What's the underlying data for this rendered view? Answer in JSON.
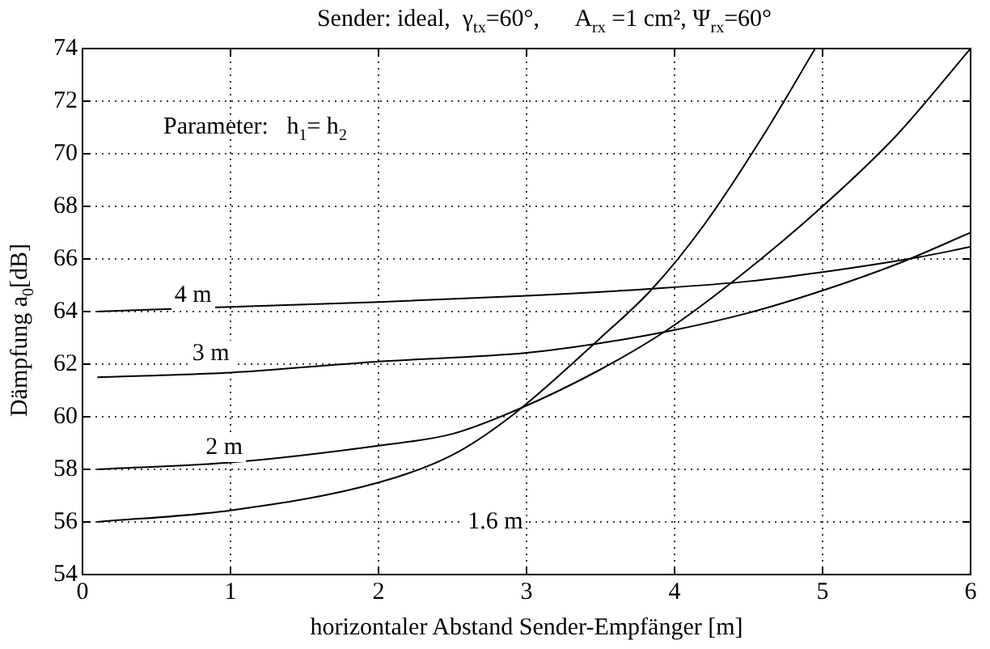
{
  "chart_data": {
    "type": "line",
    "title": "Sender: ideal,  γ$_{tx}$=60°,      A$_{rx}$ =1 cm², Ψ$_{rx}$=60°",
    "xlabel": "horizontaler Abstand Sender-Empfänger [m]",
    "ylabel": "Dämpfung a$_{0}$[dB]",
    "series": [
      {
        "name": "4 m",
        "color": "#000000",
        "x": [
          0.1,
          1,
          2,
          3,
          3.85,
          4.5,
          5,
          5.65,
          6
        ],
        "values": [
          64.0,
          64.18,
          64.36,
          64.6,
          64.87,
          65.15,
          65.5,
          66.07,
          66.46
        ]
      },
      {
        "name": "3 m",
        "color": "#000000",
        "x": [
          0.1,
          1,
          2,
          3,
          3.5,
          4,
          4.5,
          5,
          5.5,
          6
        ],
        "values": [
          61.5,
          61.68,
          62.1,
          62.43,
          62.8,
          63.3,
          63.95,
          64.8,
          65.8,
          67.0
        ]
      },
      {
        "name": "2 m",
        "color": "#000000",
        "x": [
          0.1,
          1,
          2,
          2.5,
          2.95,
          3.5,
          3.95,
          4.43,
          5,
          5.5,
          6
        ],
        "values": [
          58.0,
          58.26,
          58.9,
          59.35,
          60.3,
          61.8,
          63.3,
          65.3,
          68.0,
          70.7,
          74.0
        ]
      },
      {
        "name": "1.6 m",
        "color": "#000000",
        "x": [
          0.1,
          1,
          2,
          2.5,
          2.9,
          3.5,
          3.85,
          4.2,
          4.6,
          4.95
        ],
        "values": [
          56.0,
          56.44,
          57.5,
          58.55,
          60.04,
          63.0,
          64.87,
          67.3,
          70.7,
          74.0
        ]
      }
    ],
    "annotations": [
      "Parameter:   h$_{1}$= h$_{2}$"
    ],
    "xlim": [
      0,
      6
    ],
    "xticks": [
      0,
      1,
      2,
      3,
      4,
      5,
      6
    ],
    "ylim": [
      54,
      74
    ],
    "yticks": [
      54,
      56,
      58,
      60,
      62,
      64,
      66,
      68,
      70,
      72,
      74
    ],
    "grid": true,
    "legend": false,
    "marker": "none",
    "line_style": "solid"
  }
}
